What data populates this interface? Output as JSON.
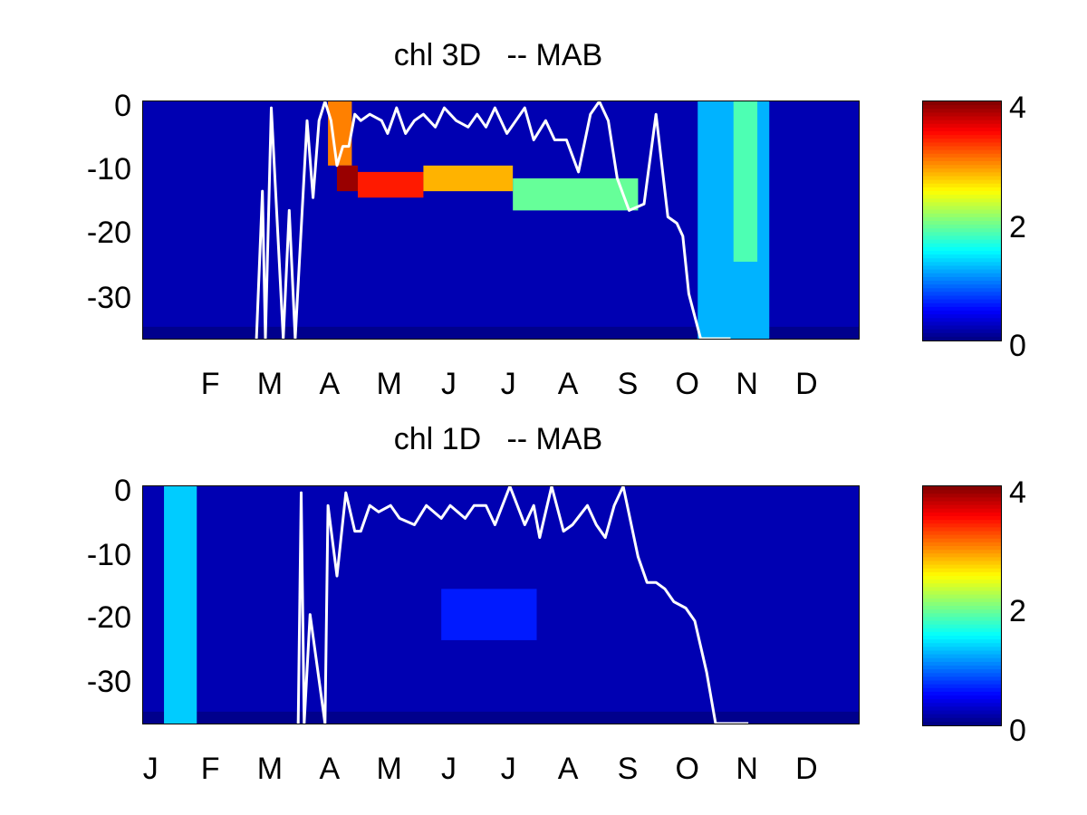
{
  "chart_data": [
    {
      "type": "heatmap",
      "title": "chl 3D   -- MAB",
      "xlabel": "",
      "ylabel": "",
      "x_tick_labels": [
        "F",
        "M",
        "A",
        "M",
        "J",
        "J",
        "A",
        "S",
        "O",
        "N",
        "D"
      ],
      "y_tick_labels": [
        "0",
        "-10",
        "-20",
        "-30"
      ],
      "y_ticks": [
        0,
        -10,
        -20,
        -30
      ],
      "ylim": [
        -37,
        0
      ],
      "xlim_months": [
        0.0,
        12.0
      ],
      "colorbar": {
        "range": [
          0,
          4
        ],
        "tick_labels": [
          "4",
          "2",
          "0"
        ],
        "colormap": "jet"
      },
      "chl_bands": [
        {
          "x_start": 3.1,
          "x_end": 3.5,
          "depth_top": 0,
          "depth_bottom": -10,
          "value": 3.0
        },
        {
          "x_start": 3.25,
          "x_end": 3.6,
          "depth_top": -10,
          "depth_bottom": -14,
          "value": 3.9
        },
        {
          "x_start": 3.6,
          "x_end": 4.7,
          "depth_top": -11,
          "depth_bottom": -15,
          "value": 3.4
        },
        {
          "x_start": 4.7,
          "x_end": 6.2,
          "depth_top": -10,
          "depth_bottom": -14,
          "value": 2.8
        },
        {
          "x_start": 6.2,
          "x_end": 8.3,
          "depth_top": -12,
          "depth_bottom": -17,
          "value": 1.9
        },
        {
          "x_start": 9.3,
          "x_end": 10.5,
          "depth_top": 0,
          "depth_bottom": -37,
          "value": 1.2
        },
        {
          "x_start": 9.9,
          "x_end": 10.3,
          "depth_top": 0,
          "depth_bottom": -25,
          "value": 1.8
        }
      ],
      "mixed_layer_depth": {
        "color": "#ffffff",
        "x": [
          1.9,
          2.0,
          2.05,
          2.15,
          2.35,
          2.45,
          2.55,
          2.75,
          2.85,
          2.95,
          3.05,
          3.15,
          3.25,
          3.35,
          3.45,
          3.55,
          3.65,
          3.8,
          4.0,
          4.1,
          4.25,
          4.4,
          4.55,
          4.7,
          4.9,
          5.05,
          5.25,
          5.45,
          5.6,
          5.75,
          5.9,
          6.1,
          6.25,
          6.4,
          6.55,
          6.75,
          6.9,
          7.1,
          7.3,
          7.5,
          7.65,
          7.8,
          7.95,
          8.15,
          8.4,
          8.6,
          8.8,
          8.95,
          9.05,
          9.15,
          9.35,
          9.5,
          9.55,
          9.7,
          9.85
        ],
        "y": [
          -37,
          -14,
          -37,
          -1,
          -37,
          -17,
          -37,
          -3,
          -15,
          -3,
          0,
          -3,
          -10,
          -7,
          -7,
          -2,
          -3,
          -2,
          -3,
          -5,
          -1,
          -5,
          -3,
          -2,
          -4,
          -1,
          -3,
          -4,
          -2,
          -4,
          -1,
          -5,
          -3,
          -1,
          -6,
          -3,
          -6,
          -6,
          -11,
          -2,
          0,
          -3,
          -12,
          -17,
          -16,
          -2,
          -18,
          -19,
          -21,
          -30,
          -37,
          -37,
          -37,
          -37,
          -37
        ]
      }
    },
    {
      "type": "heatmap",
      "title": "chl 1D   -- MAB",
      "xlabel": "",
      "ylabel": "",
      "x_tick_labels": [
        "J",
        "F",
        "M",
        "A",
        "M",
        "J",
        "J",
        "A",
        "S",
        "O",
        "N",
        "D"
      ],
      "y_tick_labels": [
        "0",
        "-10",
        "-20",
        "-30"
      ],
      "y_ticks": [
        0,
        -10,
        -20,
        -30
      ],
      "ylim": [
        -37,
        0
      ],
      "xlim_months": [
        0.0,
        12.0
      ],
      "colorbar": {
        "range": [
          0,
          4
        ],
        "tick_labels": [
          "4",
          "2",
          "0"
        ],
        "colormap": "jet"
      },
      "chl_bands": [
        {
          "x_start": 0.35,
          "x_end": 0.9,
          "depth_top": 0,
          "depth_bottom": -37,
          "value": 1.3
        },
        {
          "x_start": 5.0,
          "x_end": 6.6,
          "depth_top": -16,
          "depth_bottom": -24,
          "value": 0.6
        }
      ],
      "mixed_layer_depth": {
        "color": "#ffffff",
        "x": [
          2.6,
          2.65,
          2.7,
          2.8,
          3.05,
          3.1,
          3.25,
          3.4,
          3.55,
          3.65,
          3.8,
          3.95,
          4.15,
          4.3,
          4.55,
          4.75,
          5.0,
          5.15,
          5.4,
          5.55,
          5.75,
          5.9,
          6.15,
          6.4,
          6.55,
          6.65,
          6.85,
          7.05,
          7.2,
          7.45,
          7.6,
          7.75,
          7.9,
          8.05,
          8.3,
          8.45,
          8.6,
          8.75,
          8.9,
          9.1,
          9.25,
          9.45,
          9.6,
          9.8,
          9.95,
          10.05,
          10.15
        ],
        "y": [
          -37,
          -1,
          -37,
          -20,
          -37,
          -3,
          -14,
          -1,
          -7,
          -7,
          -3,
          -4,
          -3,
          -5,
          -6,
          -3,
          -5,
          -3,
          -5,
          -3,
          -3,
          -6,
          0,
          -6,
          -3,
          -8,
          0,
          -7,
          -6,
          -3,
          -6,
          -8,
          -3,
          0,
          -11,
          -15,
          -15,
          -16,
          -18,
          -19,
          -21,
          -29,
          -37,
          -37,
          -37,
          -37,
          -37
        ]
      }
    }
  ]
}
